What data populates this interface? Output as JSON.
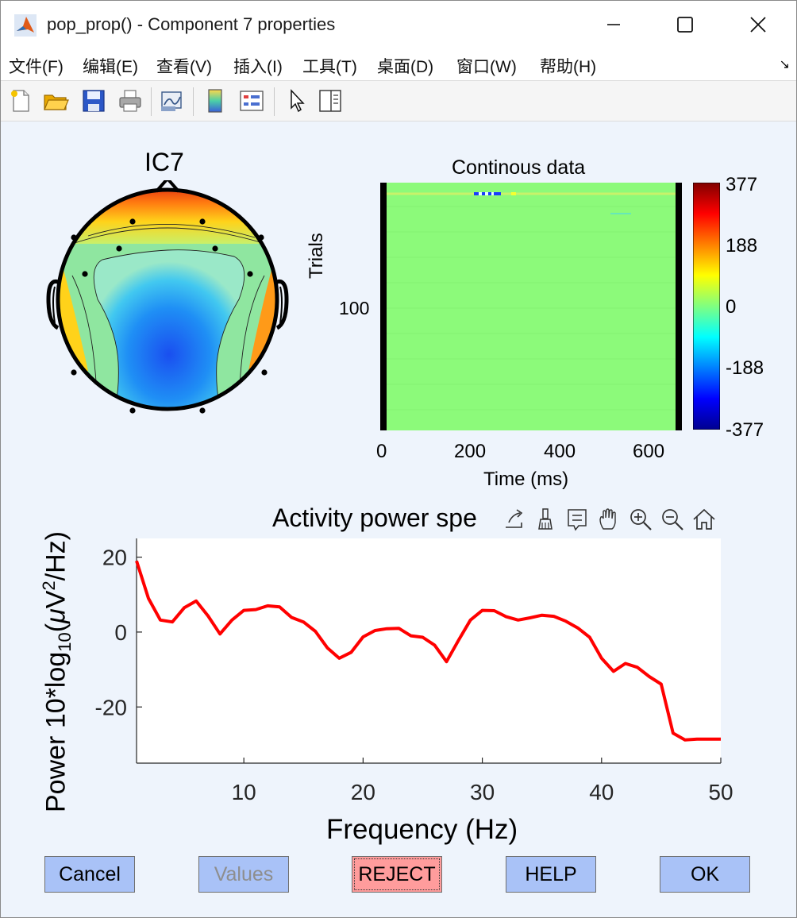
{
  "window": {
    "title": "pop_prop() - Component 7 properties",
    "controls": {
      "minimize": "minimize",
      "maximize": "maximize",
      "close": "close"
    }
  },
  "menu": {
    "items": [
      "文件(F)",
      "编辑(E)",
      "查看(V)",
      "插入(I)",
      "工具(T)",
      "桌面(D)",
      "窗口(W)",
      "帮助(H)"
    ],
    "corner": "↘"
  },
  "toolbar": {
    "icons": [
      "new-file-icon",
      "open-folder-icon",
      "save-icon",
      "print-icon",
      "link-plot-icon",
      "colorbar-icon",
      "legend-icon",
      "pointer-icon",
      "property-editor-icon"
    ]
  },
  "topo": {
    "title": "IC7"
  },
  "erpimage": {
    "title": "Continous data",
    "ylabel": "Trials",
    "yticks": [
      "100"
    ],
    "xticks": [
      "0",
      "200",
      "400",
      "600"
    ],
    "xlabel": "Time (ms)",
    "colorbar_ticks": [
      "377",
      "188",
      "0",
      "-188",
      "-377"
    ]
  },
  "axes_toolbar": {
    "icons": [
      "export-icon",
      "brush-icon",
      "datatip-icon",
      "pan-hand-icon",
      "zoom-in-icon",
      "zoom-out-icon",
      "home-icon"
    ]
  },
  "chart_data": {
    "type": "line",
    "title": "Activity power spe",
    "xlabel": "Frequency (Hz)",
    "ylabel": "Power 10*log10(μV²/Hz)",
    "xlim": [
      1,
      50
    ],
    "ylim": [
      -35,
      25
    ],
    "xticks": [
      10,
      20,
      30,
      40,
      50
    ],
    "yticks": [
      20,
      0,
      -20
    ],
    "series": [
      {
        "name": "power",
        "color": "#ff0000",
        "x": [
          1,
          2,
          3,
          4,
          5,
          6,
          7,
          8,
          9,
          10,
          11,
          12,
          13,
          14,
          15,
          16,
          17,
          18,
          19,
          20,
          21,
          22,
          23,
          24,
          25,
          26,
          27,
          28,
          29,
          30,
          31,
          32,
          33,
          34,
          35,
          36,
          37,
          38,
          39,
          40,
          41,
          42,
          43,
          44,
          45,
          46,
          47,
          48,
          49,
          50
        ],
        "y": [
          19,
          9,
          3.2,
          2.7,
          6.5,
          8.3,
          4.3,
          -0.5,
          3.2,
          5.8,
          6,
          7,
          6.7,
          3.9,
          2.7,
          0.2,
          -4.2,
          -7,
          -5.4,
          -1.3,
          0.4,
          0.9,
          1,
          -1,
          -1.4,
          -3.5,
          -7.9,
          -2.2,
          3.2,
          5.8,
          5.7,
          4.1,
          3.2,
          3.8,
          4.5,
          4.2,
          2.9,
          1.1,
          -1.4,
          -7,
          -10.5,
          -8.4,
          -9.4,
          -11.9,
          -13.9,
          -27,
          -28.8,
          -28.6,
          -28.6,
          -28.6
        ]
      }
    ]
  },
  "buttons": {
    "cancel": "Cancel",
    "values": "Values",
    "reject": "REJECT",
    "help": "HELP",
    "ok": "OK"
  },
  "colors": {
    "button_blue": "#a9c2f7",
    "button_reject": "#ff9c9c",
    "line_red": "#ff0000",
    "image_green": "#8cfa7a"
  }
}
